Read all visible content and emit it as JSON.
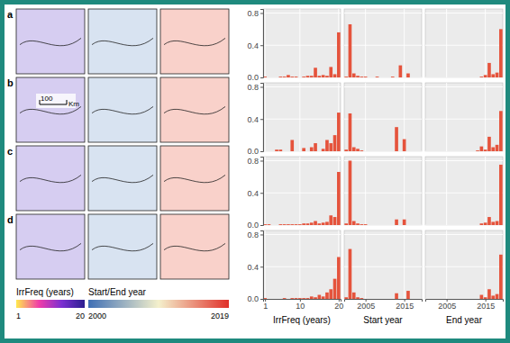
{
  "maps": {
    "panel_labels": [
      "a",
      "b",
      "c",
      "d"
    ],
    "scale_bar": {
      "value": 100,
      "unit": "Km"
    },
    "fills": [
      "#8a6fd8",
      "#8fb0d8",
      "#ee7a66"
    ],
    "colorbars": [
      {
        "title": "IrrFreq (years)",
        "range": [
          1,
          20
        ],
        "colors": [
          "#ffe94d",
          "#f03ca8",
          "#7a2fd1",
          "#2b1f8f"
        ]
      },
      {
        "title": "Start/End year",
        "range": [
          2000,
          2019
        ],
        "colors": [
          "#3f6fb5",
          "#f4f0cc",
          "#e0312a"
        ]
      }
    ]
  },
  "chart_data": [
    {
      "type": "bar",
      "x": [
        1,
        2,
        3,
        4,
        5,
        6,
        7,
        8,
        9,
        10,
        11,
        12,
        13,
        14,
        15,
        16,
        17,
        18,
        19,
        20
      ],
      "values": [
        0.01,
        0,
        0,
        0,
        0.01,
        0.01,
        0.03,
        0.01,
        0.01,
        0,
        0.01,
        0.02,
        0.02,
        0.12,
        0.02,
        0.03,
        0.02,
        0.13,
        0.04,
        0.56
      ],
      "color": "#e5533c",
      "xlim": [
        0.5,
        20.5
      ],
      "ylim": [
        0,
        0.85
      ],
      "xticks": [
        1,
        10,
        20
      ],
      "yticks": [
        {
          "value": 0,
          "label": "0.0"
        },
        {
          "value": 0.4,
          "label": "0.4"
        },
        {
          "value": 0.8,
          "label": "0.8"
        }
      ],
      "grid": true,
      "tick_labels": "y"
    },
    {
      "type": "bar",
      "x": [
        2000,
        2001,
        2002,
        2003,
        2004,
        2005,
        2006,
        2007,
        2008,
        2009,
        2010,
        2011,
        2012,
        2013,
        2014,
        2015,
        2016,
        2017,
        2018,
        2019
      ],
      "values": [
        0.01,
        0.66,
        0.05,
        0.02,
        0.01,
        0.01,
        0,
        0,
        0.01,
        0,
        0,
        0,
        0.01,
        0,
        0.15,
        0,
        0.05,
        0,
        0,
        0
      ],
      "color": "#e5533c",
      "xlim": [
        1999.5,
        2019.5
      ],
      "ylim": [
        0,
        0.85
      ],
      "xticks": [
        2005,
        2015
      ],
      "yticks": [
        0,
        0.4,
        0.8
      ],
      "grid": true,
      "tick_labels": false
    },
    {
      "type": "bar",
      "x": [
        2000,
        2001,
        2002,
        2003,
        2004,
        2005,
        2006,
        2007,
        2008,
        2009,
        2010,
        2011,
        2012,
        2013,
        2014,
        2015,
        2016,
        2017,
        2018,
        2019
      ],
      "values": [
        0,
        0,
        0,
        0,
        0,
        0,
        0,
        0,
        0,
        0,
        0,
        0,
        0,
        0,
        0.01,
        0.03,
        0.18,
        0.04,
        0.06,
        0.6
      ],
      "color": "#e5533c",
      "xlim": [
        1999.5,
        2019.5
      ],
      "ylim": [
        0,
        0.85
      ],
      "xticks": [
        2005,
        2015
      ],
      "yticks": [
        0,
        0.4,
        0.8
      ],
      "grid": true,
      "tick_labels": false
    },
    {
      "type": "bar",
      "x": [
        1,
        2,
        3,
        4,
        5,
        6,
        7,
        8,
        9,
        10,
        11,
        12,
        13,
        14,
        15,
        16,
        17,
        18,
        19,
        20
      ],
      "values": [
        0,
        0,
        0,
        0.02,
        0.02,
        0,
        0,
        0.14,
        0,
        0,
        0.04,
        0,
        0.05,
        0.1,
        0,
        0.03,
        0.14,
        0.1,
        0.2,
        0.48
      ],
      "color": "#e5533c",
      "xlim": [
        0.5,
        20.5
      ],
      "ylim": [
        0,
        0.85
      ],
      "xticks": [
        1,
        10,
        20
      ],
      "yticks": [
        {
          "value": 0,
          "label": "0.0"
        },
        {
          "value": 0.4,
          "label": "0.4"
        },
        {
          "value": 0.8,
          "label": "0.8"
        }
      ],
      "grid": true,
      "tick_labels": "y"
    },
    {
      "type": "bar",
      "x": [
        2000,
        2001,
        2002,
        2003,
        2004,
        2005,
        2006,
        2007,
        2008,
        2009,
        2010,
        2011,
        2012,
        2013,
        2014,
        2015,
        2016,
        2017,
        2018,
        2019
      ],
      "values": [
        0.02,
        0.47,
        0.05,
        0.03,
        0.01,
        0,
        0,
        0,
        0,
        0,
        0,
        0,
        0,
        0.3,
        0,
        0.15,
        0,
        0,
        0,
        0
      ],
      "color": "#e5533c",
      "xlim": [
        1999.5,
        2019.5
      ],
      "ylim": [
        0,
        0.85
      ],
      "xticks": [
        2005,
        2015
      ],
      "yticks": [
        0,
        0.4,
        0.8
      ],
      "grid": true,
      "tick_labels": false
    },
    {
      "type": "bar",
      "x": [
        2000,
        2001,
        2002,
        2003,
        2004,
        2005,
        2006,
        2007,
        2008,
        2009,
        2010,
        2011,
        2012,
        2013,
        2014,
        2015,
        2016,
        2017,
        2018,
        2019
      ],
      "values": [
        0,
        0,
        0,
        0,
        0,
        0,
        0,
        0,
        0,
        0,
        0,
        0,
        0,
        0.01,
        0.06,
        0.02,
        0.18,
        0.05,
        0.08,
        0.5
      ],
      "color": "#e5533c",
      "xlim": [
        1999.5,
        2019.5
      ],
      "ylim": [
        0,
        0.85
      ],
      "xticks": [
        2005,
        2015
      ],
      "yticks": [
        0,
        0.4,
        0.8
      ],
      "grid": true,
      "tick_labels": false
    },
    {
      "type": "bar",
      "x": [
        1,
        2,
        3,
        4,
        5,
        6,
        7,
        8,
        9,
        10,
        11,
        12,
        13,
        14,
        15,
        16,
        17,
        18,
        19,
        20
      ],
      "values": [
        0.01,
        0.01,
        0,
        0,
        0.01,
        0.01,
        0.01,
        0.01,
        0.01,
        0.01,
        0.02,
        0.02,
        0.03,
        0.05,
        0.02,
        0.03,
        0.04,
        0.12,
        0.1,
        0.66
      ],
      "color": "#e5533c",
      "xlim": [
        0.5,
        20.5
      ],
      "ylim": [
        0,
        0.85
      ],
      "xticks": [
        1,
        10,
        20
      ],
      "yticks": [
        {
          "value": 0,
          "label": "0.0"
        },
        {
          "value": 0.4,
          "label": "0.4"
        },
        {
          "value": 0.8,
          "label": "0.8"
        }
      ],
      "grid": true,
      "tick_labels": "y"
    },
    {
      "type": "bar",
      "x": [
        2000,
        2001,
        2002,
        2003,
        2004,
        2005,
        2006,
        2007,
        2008,
        2009,
        2010,
        2011,
        2012,
        2013,
        2014,
        2015,
        2016,
        2017,
        2018,
        2019
      ],
      "values": [
        0.02,
        0.8,
        0.05,
        0.02,
        0.01,
        0.01,
        0,
        0,
        0,
        0,
        0,
        0,
        0,
        0.07,
        0,
        0.07,
        0,
        0,
        0,
        0
      ],
      "color": "#e5533c",
      "xlim": [
        1999.5,
        2019.5
      ],
      "ylim": [
        0,
        0.85
      ],
      "xticks": [
        2005,
        2015
      ],
      "yticks": [
        0,
        0.4,
        0.8
      ],
      "grid": true,
      "tick_labels": false
    },
    {
      "type": "bar",
      "x": [
        2000,
        2001,
        2002,
        2003,
        2004,
        2005,
        2006,
        2007,
        2008,
        2009,
        2010,
        2011,
        2012,
        2013,
        2014,
        2015,
        2016,
        2017,
        2018,
        2019
      ],
      "values": [
        0,
        0,
        0,
        0,
        0,
        0,
        0,
        0,
        0,
        0,
        0,
        0,
        0,
        0,
        0.02,
        0.03,
        0.1,
        0.04,
        0.05,
        0.75
      ],
      "color": "#e5533c",
      "xlim": [
        1999.5,
        2019.5
      ],
      "ylim": [
        0,
        0.85
      ],
      "xticks": [
        2005,
        2015
      ],
      "yticks": [
        0,
        0.4,
        0.8
      ],
      "grid": true,
      "tick_labels": false
    },
    {
      "type": "bar",
      "x": [
        1,
        2,
        3,
        4,
        5,
        6,
        7,
        8,
        9,
        10,
        11,
        12,
        13,
        14,
        15,
        16,
        17,
        18,
        19,
        20
      ],
      "values": [
        0.01,
        0,
        0,
        0,
        0,
        0.01,
        0,
        0.01,
        0.01,
        0.01,
        0.01,
        0.01,
        0.03,
        0.02,
        0.05,
        0.03,
        0.08,
        0.12,
        0.25,
        0.52
      ],
      "color": "#e5533c",
      "xlim": [
        0.5,
        20.5
      ],
      "ylim": [
        0,
        0.85
      ],
      "xticks": [
        1,
        10,
        20
      ],
      "yticks": [
        {
          "value": 0,
          "label": "0.0"
        },
        {
          "value": 0.4,
          "label": "0.4"
        },
        {
          "value": 0.8,
          "label": "0.8"
        }
      ],
      "grid": true,
      "x_label": "IrrFreq (years)"
    },
    {
      "type": "bar",
      "x": [
        2000,
        2001,
        2002,
        2003,
        2004,
        2005,
        2006,
        2007,
        2008,
        2009,
        2010,
        2011,
        2012,
        2013,
        2014,
        2015,
        2016,
        2017,
        2018,
        2019
      ],
      "values": [
        0.02,
        0.62,
        0.08,
        0.02,
        0.01,
        0,
        0,
        0,
        0,
        0,
        0,
        0,
        0,
        0.07,
        0,
        0,
        0.1,
        0,
        0,
        0
      ],
      "color": "#e5533c",
      "xlim": [
        1999.5,
        2019.5
      ],
      "ylim": [
        0,
        0.85
      ],
      "xticks": [
        2005,
        2015
      ],
      "yticks": [
        0,
        0.4,
        0.8
      ],
      "grid": true,
      "tick_labels": "x",
      "x_label": "Start year"
    },
    {
      "type": "bar",
      "x": [
        2000,
        2001,
        2002,
        2003,
        2004,
        2005,
        2006,
        2007,
        2008,
        2009,
        2010,
        2011,
        2012,
        2013,
        2014,
        2015,
        2016,
        2017,
        2018,
        2019
      ],
      "values": [
        0,
        0,
        0,
        0,
        0,
        0,
        0,
        0,
        0,
        0,
        0,
        0,
        0,
        0,
        0.05,
        0.02,
        0.12,
        0.04,
        0.06,
        0.55
      ],
      "color": "#e5533c",
      "xlim": [
        1999.5,
        2019.5
      ],
      "ylim": [
        0,
        0.85
      ],
      "xticks": [
        2005,
        2015
      ],
      "yticks": [
        0,
        0.4,
        0.8
      ],
      "grid": true,
      "tick_labels": "x",
      "x_label": "End year"
    }
  ]
}
